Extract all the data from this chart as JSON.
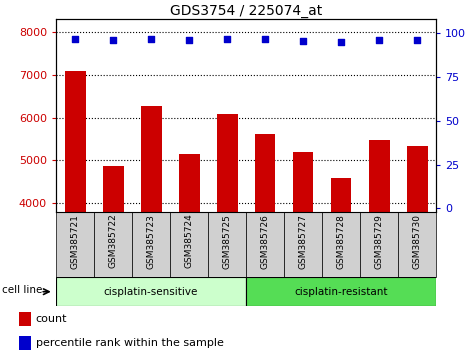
{
  "title": "GDS3754 / 225074_at",
  "samples": [
    "GSM385721",
    "GSM385722",
    "GSM385723",
    "GSM385724",
    "GSM385725",
    "GSM385726",
    "GSM385727",
    "GSM385728",
    "GSM385729",
    "GSM385730"
  ],
  "counts": [
    7090,
    4870,
    6270,
    5150,
    6080,
    5620,
    5190,
    4600,
    5490,
    5330
  ],
  "percentile_ranks": [
    97,
    96,
    97,
    96,
    97,
    97,
    95.5,
    95,
    96,
    96
  ],
  "bar_color": "#cc0000",
  "dot_color": "#0000cc",
  "ylim_left": [
    3800,
    8300
  ],
  "ylim_right": [
    -2,
    108
  ],
  "yticks_left": [
    4000,
    5000,
    6000,
    7000,
    8000
  ],
  "yticks_right": [
    0,
    25,
    50,
    75,
    100
  ],
  "group1_label": "cisplatin-sensitive",
  "group2_label": "cisplatin-resistant",
  "group1_color": "#ccffcc",
  "group2_color": "#55dd55",
  "cell_line_label": "cell line",
  "legend_count_label": "count",
  "legend_pct_label": "percentile rank within the sample",
  "background_gray": "#d0d0d0"
}
